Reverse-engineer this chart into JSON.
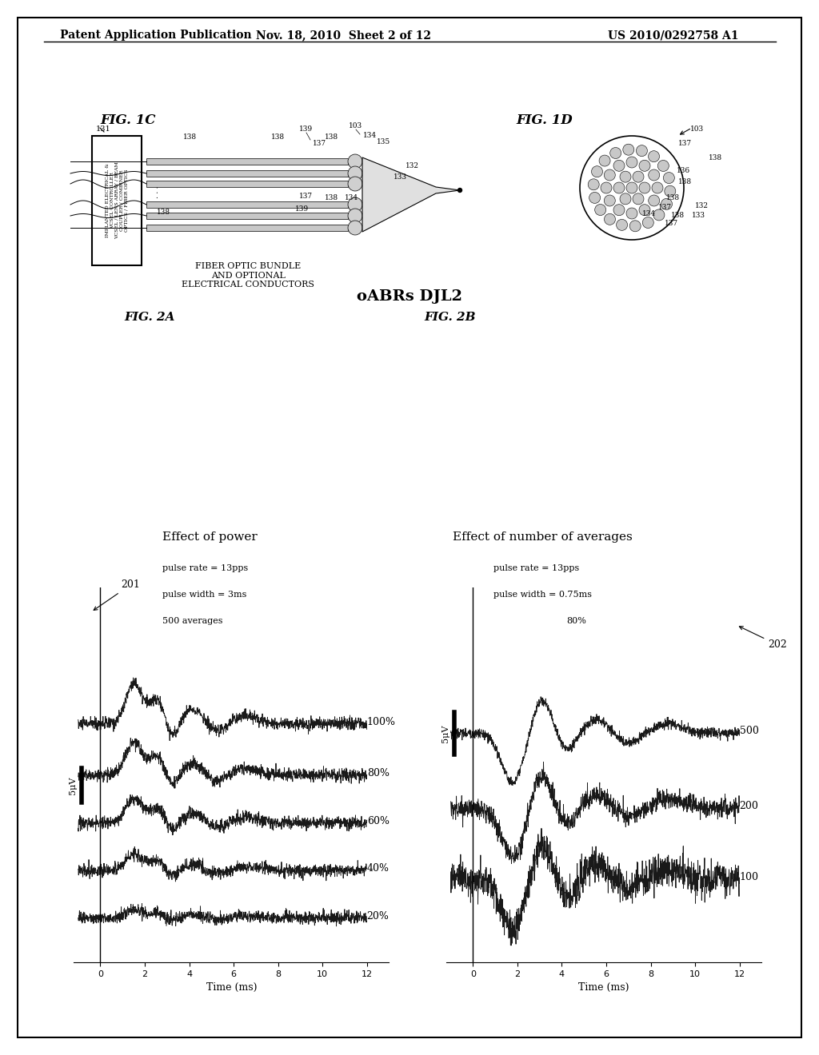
{
  "bg_color": "#ffffff",
  "header_left": "Patent Application Publication",
  "header_mid": "Nov. 18, 2010  Sheet 2 of 12",
  "header_right": "US 2010/0292758 A1",
  "fig1c_label": "FIG. 1C",
  "fig1d_label": "FIG. 1D",
  "fig2a_label": "FIG. 2A",
  "fig2b_label": "FIG. 2B",
  "oabrs_title": "oABRs DJL2",
  "fig2a_title": "Effect of power",
  "fig2a_sub1": "pulse rate = 13pps",
  "fig2a_sub2": "pulse width = 3ms",
  "fig2a_sub3": "500 averages",
  "fig2b_title": "Effect of number of averages",
  "fig2b_sub1": "pulse rate = 13pps",
  "fig2b_sub2": "pulse width = 0.75ms",
  "fig2b_sub3": "80%",
  "fig2a_labels": [
    "100%",
    "80%",
    "60%",
    "40%",
    "20%"
  ],
  "fig2b_labels": [
    "500",
    "200",
    "100"
  ],
  "xlabel": "Time (ms)",
  "scalebar_label": "5μV",
  "ref_num_201": "201",
  "ref_num_202": "202"
}
